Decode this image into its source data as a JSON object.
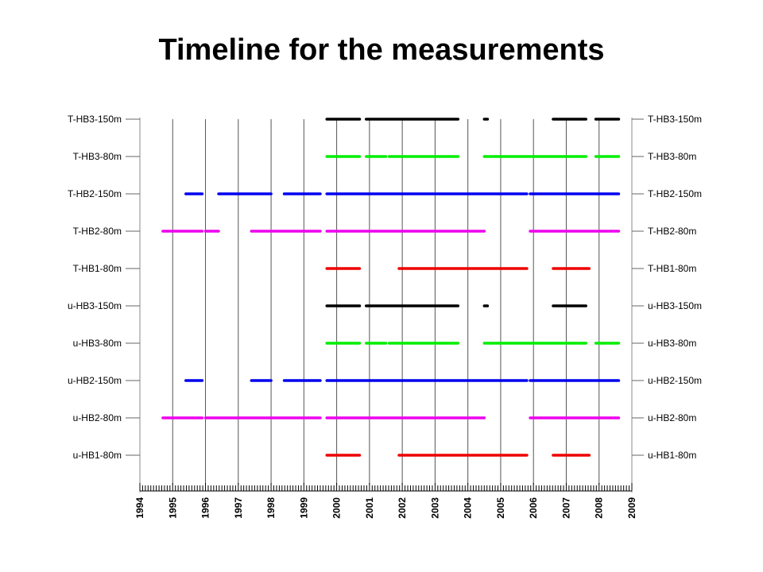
{
  "page": {
    "title": "Timeline for the measurements"
  },
  "chart_data": {
    "type": "timeline",
    "title": "Timeline for the measurements",
    "xlim": [
      1994,
      2009
    ],
    "x_ticks": [
      1994,
      1995,
      1996,
      1997,
      1998,
      1999,
      2000,
      2001,
      2002,
      2003,
      2004,
      2005,
      2006,
      2007,
      2008,
      2009
    ],
    "x_tick_labels": [
      "1994",
      "1995",
      "1996",
      "1997",
      "1998",
      "1999",
      "2000",
      "2001",
      "2002",
      "2003",
      "2004",
      "2005",
      "2006",
      "2007",
      "2008",
      "2009"
    ],
    "grid_years": [
      1995,
      1996,
      1997,
      1998,
      1999,
      2000,
      2001,
      2002,
      2003,
      2004,
      2005,
      2006,
      2007,
      2008
    ],
    "minor_ticks_per_year": 12,
    "rows": [
      {
        "label": "T-HB3-150m",
        "color": "#000000",
        "intervals": [
          [
            1999.7,
            2000.7
          ],
          [
            2000.9,
            2003.7
          ],
          [
            2004.5,
            2004.6
          ],
          [
            2006.6,
            2007.6
          ],
          [
            2007.9,
            2008.6
          ]
        ]
      },
      {
        "label": "T-HB3-80m",
        "color": "#00ee00",
        "intervals": [
          [
            1999.7,
            2000.7
          ],
          [
            2000.9,
            2001.5
          ],
          [
            2001.6,
            2003.7
          ],
          [
            2004.5,
            2007.6
          ],
          [
            2007.9,
            2008.6
          ]
        ]
      },
      {
        "label": "T-HB2-150m",
        "color": "#0000ee",
        "intervals": [
          [
            1995.4,
            1995.9
          ],
          [
            1996.4,
            1998.0
          ],
          [
            1998.4,
            1999.5
          ],
          [
            1999.7,
            2005.8
          ],
          [
            2005.9,
            2008.6
          ]
        ]
      },
      {
        "label": "T-HB2-80m",
        "color": "#ee00ee",
        "intervals": [
          [
            1994.7,
            1995.9
          ],
          [
            1996.0,
            1996.4
          ],
          [
            1997.4,
            1999.5
          ],
          [
            1999.7,
            2004.5
          ],
          [
            2005.9,
            2008.6
          ]
        ]
      },
      {
        "label": "T-HB1-80m",
        "color": "#ee0000",
        "intervals": [
          [
            1999.7,
            2000.7
          ],
          [
            2001.9,
            2005.8
          ],
          [
            2006.6,
            2007.7
          ]
        ]
      },
      {
        "label": "u-HB3-150m",
        "color": "#000000",
        "intervals": [
          [
            1999.7,
            2000.7
          ],
          [
            2000.9,
            2003.7
          ],
          [
            2004.5,
            2004.6
          ],
          [
            2006.6,
            2007.6
          ]
        ]
      },
      {
        "label": "u-HB3-80m",
        "color": "#00ee00",
        "intervals": [
          [
            1999.7,
            2000.7
          ],
          [
            2000.9,
            2001.5
          ],
          [
            2001.6,
            2003.7
          ],
          [
            2004.5,
            2007.6
          ],
          [
            2007.9,
            2008.6
          ]
        ]
      },
      {
        "label": "u-HB2-150m",
        "color": "#0000ee",
        "intervals": [
          [
            1995.4,
            1995.9
          ],
          [
            1997.4,
            1998.0
          ],
          [
            1998.4,
            1999.5
          ],
          [
            1999.7,
            2005.8
          ],
          [
            2005.9,
            2008.6
          ]
        ]
      },
      {
        "label": "u-HB2-80m",
        "color": "#ee00ee",
        "intervals": [
          [
            1994.7,
            1995.9
          ],
          [
            1996.0,
            1999.5
          ],
          [
            1999.7,
            2004.5
          ],
          [
            2005.9,
            2008.6
          ]
        ]
      },
      {
        "label": "u-HB1-80m",
        "color": "#ee0000",
        "intervals": [
          [
            1999.7,
            2000.7
          ],
          [
            2001.9,
            2005.8
          ],
          [
            2006.6,
            2007.7
          ]
        ]
      }
    ]
  }
}
